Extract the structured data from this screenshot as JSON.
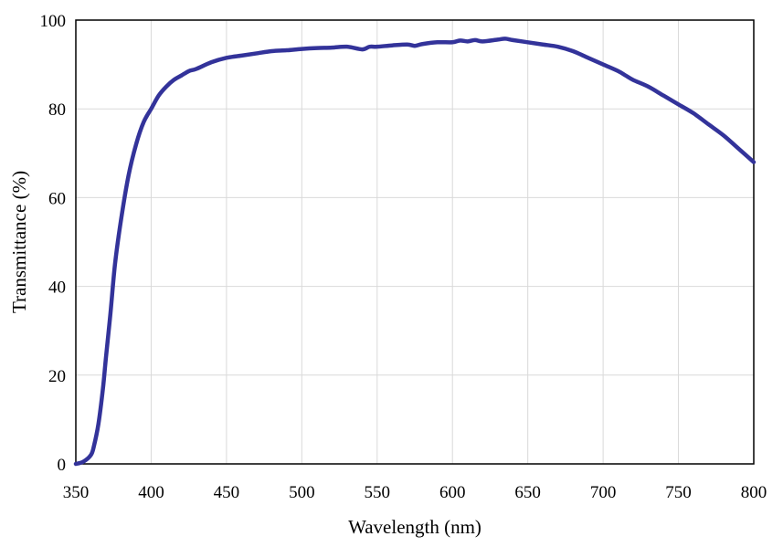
{
  "chart_data": {
    "type": "line",
    "title": "",
    "xlabel": "Wavelength (nm)",
    "ylabel": "Transmittance (%)",
    "xlim": [
      350,
      800
    ],
    "ylim": [
      0,
      100
    ],
    "x_ticks": [
      350,
      400,
      450,
      500,
      550,
      600,
      650,
      700,
      750,
      800
    ],
    "y_ticks": [
      0,
      20,
      40,
      60,
      80,
      100
    ],
    "grid": true,
    "legend": "none",
    "series": [
      {
        "color": "#33339a",
        "x": [
          350,
          355,
          360,
          362,
          365,
          368,
          370,
          373,
          376,
          380,
          385,
          390,
          395,
          400,
          405,
          410,
          415,
          420,
          425,
          430,
          440,
          450,
          460,
          470,
          480,
          490,
          500,
          510,
          520,
          530,
          540,
          545,
          550,
          560,
          570,
          575,
          580,
          590,
          600,
          605,
          610,
          615,
          620,
          630,
          635,
          640,
          650,
          660,
          670,
          680,
          690,
          700,
          710,
          715,
          720,
          730,
          740,
          750,
          760,
          770,
          780,
          790,
          800
        ],
        "y": [
          0,
          0.5,
          2,
          4,
          9,
          17,
          24,
          34,
          45,
          55,
          65,
          72,
          77,
          80,
          83,
          85,
          86.5,
          87.5,
          88.5,
          89,
          90.5,
          91.5,
          92,
          92.5,
          93,
          93.2,
          93.5,
          93.7,
          93.8,
          94,
          93.4,
          94,
          94,
          94.3,
          94.5,
          94.2,
          94.6,
          95,
          95,
          95.4,
          95.2,
          95.5,
          95.2,
          95.6,
          95.8,
          95.5,
          95,
          94.5,
          94,
          93,
          91.5,
          90,
          88.5,
          87.5,
          86.5,
          85,
          83,
          81,
          79,
          76.5,
          74,
          71,
          68
        ]
      }
    ]
  }
}
